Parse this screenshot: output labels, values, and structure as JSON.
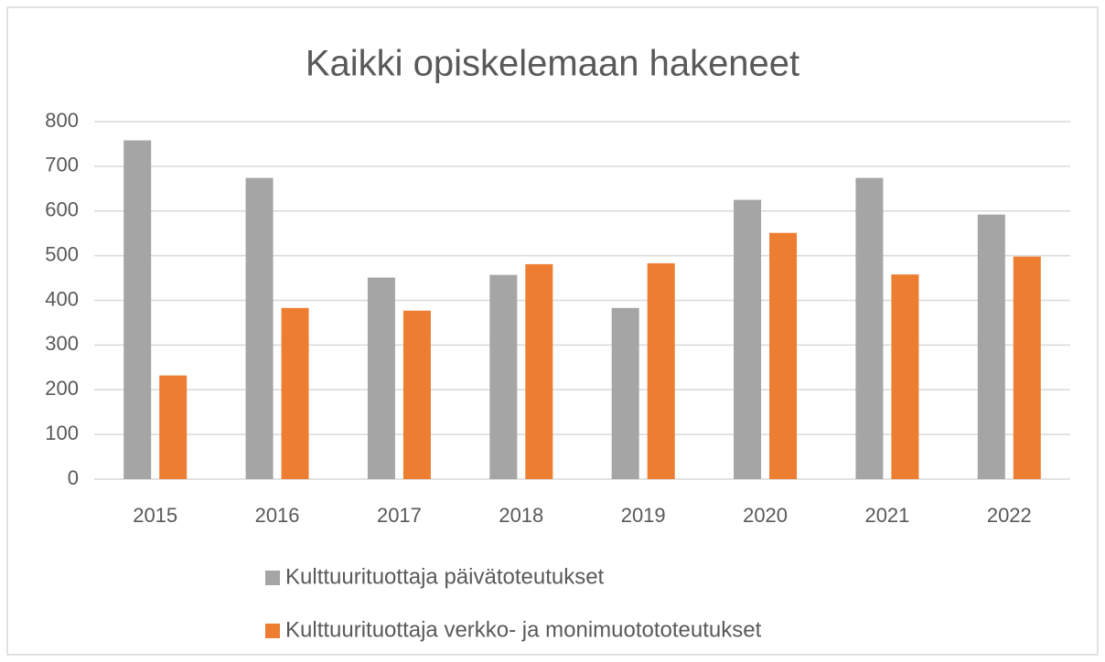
{
  "chart_data": {
    "type": "bar",
    "title": "Kaikki opiskelemaan hakeneet",
    "categories": [
      "2015",
      "2016",
      "2017",
      "2018",
      "2019",
      "2020",
      "2021",
      "2022"
    ],
    "series": [
      {
        "name": "Kulttuurituottaja päivätoteutukset",
        "color": "#a5a5a5",
        "values": [
          758,
          674,
          451,
          457,
          383,
          625,
          674,
          592
        ]
      },
      {
        "name": "Kulttuurituottaja verkko- ja monimuotototeutukset",
        "color": "#ed7d31",
        "values": [
          232,
          383,
          377,
          481,
          483,
          551,
          458,
          498
        ]
      }
    ],
    "ylim": [
      0,
      800
    ],
    "yticks": [
      0,
      100,
      200,
      300,
      400,
      500,
      600,
      700,
      800
    ],
    "grid": true,
    "legend": "bottom"
  }
}
